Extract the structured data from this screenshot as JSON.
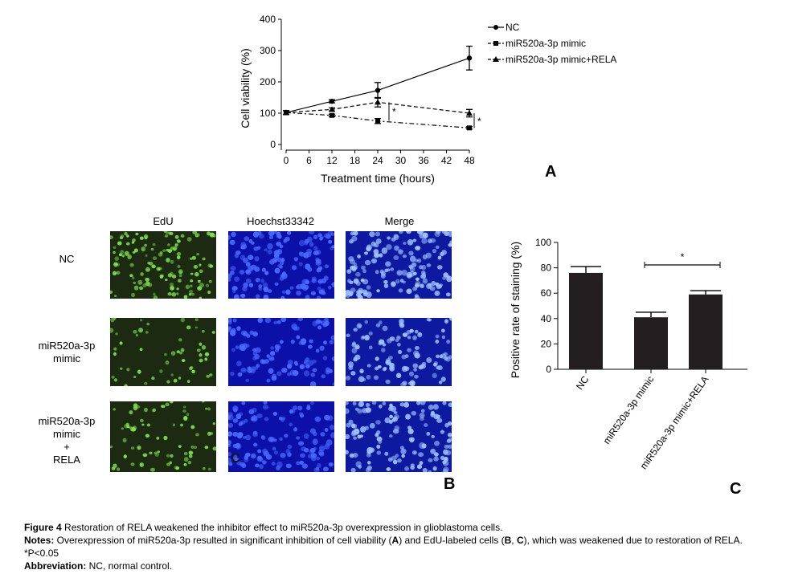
{
  "panel_a": {
    "letter": "A",
    "legend": [
      "NC",
      "miR520a-3p mimic",
      "miR520a-3p mimic+RELA"
    ],
    "annotations": [
      "*",
      "*"
    ]
  },
  "panel_b": {
    "letter": "B",
    "columns": [
      "EdU",
      "Hoechst33342",
      "Merge"
    ],
    "rows": [
      [
        "NC"
      ],
      [
        "miR520a-3p",
        "mimic"
      ],
      [
        "miR520a-3p",
        "mimic",
        "+",
        "RELA"
      ]
    ],
    "overlay_letter": "C",
    "colors": {
      "edu_bg": "#1c2a12",
      "edu_dot": "#7de04a",
      "hoechst_bg": "#0a10a8",
      "hoechst_dot": "#4a6aff",
      "merge_bg": "#0d1aa0",
      "merge_dot": "#9fc0ff"
    }
  },
  "panel_c": {
    "letter": "C",
    "annotation": "*"
  },
  "chart_data": [
    {
      "type": "line",
      "xlabel": "Treatment time (hours)",
      "ylabel": "Cell viability (%)",
      "x": [
        0,
        12,
        24,
        48
      ],
      "xticks": [
        0,
        6,
        12,
        18,
        24,
        30,
        36,
        42,
        48
      ],
      "yticks": [
        0,
        100,
        200,
        300,
        400
      ],
      "xlim": [
        0,
        48
      ],
      "ylim": [
        0,
        400
      ],
      "legend_position": "top-right",
      "series": [
        {
          "name": "NC",
          "marker": "circle",
          "dash": "solid",
          "values": [
            102,
            138,
            173,
            276
          ],
          "errors": [
            6,
            5,
            25,
            38
          ]
        },
        {
          "name": "miR520a-3p mimic",
          "marker": "square",
          "dash": "dashdot",
          "values": [
            102,
            93,
            75,
            53
          ],
          "errors": [
            6,
            4,
            8,
            4
          ]
        },
        {
          "name": "miR520a-3p mimic+RELA",
          "marker": "triangle",
          "dash": "dashed",
          "values": [
            102,
            112,
            135,
            100
          ],
          "errors": [
            6,
            5,
            15,
            12
          ]
        }
      ]
    },
    {
      "type": "bar",
      "ylabel": "Positive rate of staining (%)",
      "categories": [
        "NC",
        "miR520a-3p mimic",
        "miR520a-3p mimic+RELA"
      ],
      "values": [
        76,
        41,
        59
      ],
      "errors": [
        5,
        4,
        3
      ],
      "yticks": [
        0,
        20,
        40,
        60,
        80,
        100
      ],
      "ylim": [
        0,
        100
      ],
      "color": "#231f20"
    }
  ],
  "caption": {
    "figure_label": "Figure 4",
    "figure_text": " Restoration of RELA weakened the inhibitor effect to miR520a-3p overexpression in glioblastoma cells.",
    "notes_label": "Notes:",
    "notes_pre": " Overexpression of miR520a-3p resulted in significant inhibition of cell viability (",
    "notes_a": "A",
    "notes_mid1": ") and EdU-labeled cells (",
    "notes_b": "B",
    "notes_mid2": ", ",
    "notes_c": "C",
    "notes_post": "), which was weakened due to restoration of RELA.",
    "pvalue": "*P<0.05",
    "abbrev_label": "Abbreviation:",
    "abbrev_text": " NC, normal control."
  }
}
